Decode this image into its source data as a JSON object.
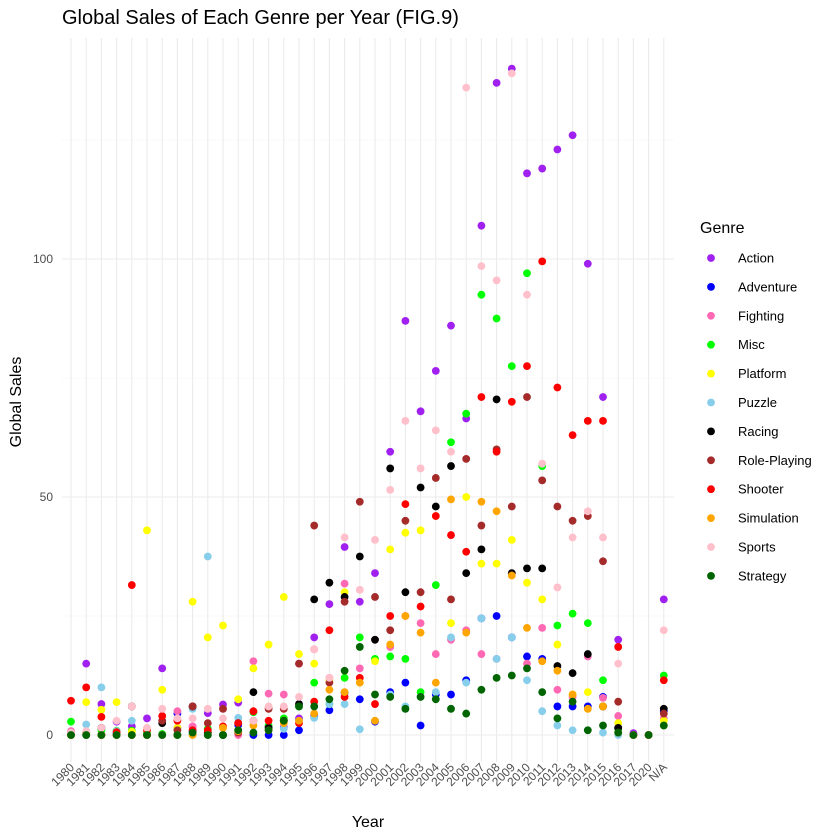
{
  "chart_data": {
    "type": "scatter",
    "title": "Global Sales of Each Genre per Year (FIG.9)",
    "xlabel": "Year",
    "ylabel": "Global Sales",
    "ylim": [
      -5,
      150
    ],
    "yticks": [
      0,
      50,
      100
    ],
    "grid": true,
    "legend_title": "Genre",
    "legend_position": "right",
    "categories": [
      "1980",
      "1981",
      "1982",
      "1983",
      "1984",
      "1985",
      "1986",
      "1987",
      "1988",
      "1989",
      "1990",
      "1991",
      "1992",
      "1993",
      "1994",
      "1995",
      "1996",
      "1997",
      "1998",
      "1999",
      "2000",
      "2001",
      "2002",
      "2003",
      "2004",
      "2005",
      "2006",
      "2007",
      "2008",
      "2009",
      "2010",
      "2011",
      "2012",
      "2013",
      "2014",
      "2015",
      "2016",
      "2017",
      "2020",
      "N/A"
    ],
    "series": [
      {
        "name": "Action",
        "color": "#a020f0",
        "values": [
          0.3,
          15,
          6.5,
          2.8,
          1.8,
          3.5,
          14,
          1.5,
          1.7,
          4.6,
          6.4,
          6.8,
          4.8,
          1.7,
          1.6,
          3.5,
          20.5,
          27.5,
          39.5,
          28,
          34,
          59.5,
          87,
          68,
          76.5,
          86,
          66.5,
          107,
          137,
          140,
          118,
          119,
          123,
          126,
          99,
          71,
          20,
          0.4,
          0,
          28.5
        ]
      },
      {
        "name": "Adventure",
        "color": "#0000ff",
        "values": [
          0,
          0,
          0,
          0.4,
          0,
          0,
          0,
          4.5,
          0.8,
          0,
          0,
          2.1,
          0,
          0,
          0,
          1,
          4,
          5.2,
          8.9,
          7.5,
          2.8,
          9,
          11,
          2,
          8.5,
          8.5,
          11.5,
          24.5,
          25,
          20.5,
          16.5,
          16,
          6,
          6,
          6,
          8,
          1.5,
          0,
          0,
          5
        ]
      },
      {
        "name": "Fighting",
        "color": "#ff69b4",
        "values": [
          0.8,
          0,
          0,
          0,
          0,
          0,
          0,
          5,
          1.8,
          0.5,
          0,
          0,
          15.5,
          8.7,
          8.5,
          15,
          18,
          12,
          31.8,
          14,
          20,
          18.5,
          25,
          23.5,
          17,
          20,
          22,
          17,
          16,
          34,
          15,
          22.5,
          9.5,
          8,
          16.5,
          7.8,
          4,
          0,
          0,
          3.5
        ]
      },
      {
        "name": "Misc",
        "color": "#00ff00",
        "values": [
          2.8,
          0,
          1,
          0.9,
          0.9,
          0.5,
          0.2,
          0,
          0.2,
          1.3,
          0,
          0.9,
          4.8,
          2,
          3.5,
          6,
          11,
          6.5,
          12,
          20.5,
          16,
          16.5,
          16,
          9,
          31.5,
          61.5,
          67.5,
          92.5,
          87.5,
          77.5,
          97,
          56.5,
          23,
          25.5,
          23.5,
          11.5,
          1.2,
          0,
          0,
          12.5
        ]
      },
      {
        "name": "Platform",
        "color": "#ffff00",
        "values": [
          0,
          6.9,
          5.3,
          6.9,
          0.7,
          43,
          9.5,
          1.5,
          28,
          20.5,
          23,
          7.5,
          14,
          19,
          29,
          17,
          15,
          11.5,
          30,
          11,
          15.5,
          39,
          42.5,
          43,
          46,
          23.5,
          50,
          36,
          36,
          41,
          32,
          28.5,
          19,
          8.5,
          9,
          6,
          2.5,
          0,
          0,
          3
        ]
      },
      {
        "name": "Puzzle",
        "color": "#87ceeb",
        "values": [
          0,
          2.2,
          10,
          0.8,
          3,
          0,
          0,
          0,
          5.5,
          37.5,
          0,
          3.6,
          3,
          1.5,
          1.3,
          3,
          3.6,
          6.5,
          6.5,
          1.2,
          3,
          8.5,
          6,
          8,
          9,
          20.5,
          11,
          24.5,
          16,
          20.5,
          11.5,
          5,
          2,
          1,
          1,
          0.5,
          0,
          0,
          0,
          2
        ]
      },
      {
        "name": "Racing",
        "color": "#000000",
        "values": [
          0,
          0.5,
          1.5,
          0,
          6,
          0,
          2.5,
          0,
          6,
          0.5,
          0,
          2.5,
          9,
          1.5,
          3,
          6.5,
          28.5,
          32,
          29,
          37.5,
          20,
          56,
          30,
          52,
          48,
          56.5,
          34,
          39,
          70.5,
          34,
          35,
          35,
          14.5,
          13,
          17,
          6,
          1.5,
          0,
          0,
          5.5
        ]
      },
      {
        "name": "Role-Playing",
        "color": "#a52a2a",
        "values": [
          0,
          0,
          0,
          0,
          0,
          0,
          3,
          1,
          6,
          2.5,
          5.5,
          0.5,
          3,
          5.5,
          5.5,
          15,
          44,
          11,
          28,
          49,
          29,
          22,
          45,
          30,
          54,
          28.5,
          58,
          44,
          60,
          48,
          71,
          53.5,
          48,
          45,
          46,
          36.5,
          7,
          0,
          0,
          4.5
        ]
      },
      {
        "name": "Shooter",
        "color": "#ff0000",
        "values": [
          7.2,
          10,
          3.8,
          0.6,
          31.5,
          1,
          4,
          3,
          1,
          1,
          1.8,
          2.5,
          5,
          3,
          3,
          2.5,
          7,
          22,
          8,
          12,
          6.5,
          25,
          48.5,
          27,
          46,
          42,
          38.5,
          71,
          59.5,
          70,
          77.5,
          99.5,
          73,
          63,
          66,
          66,
          18.5,
          0,
          0,
          11.5
        ]
      },
      {
        "name": "Simulation",
        "color": "#ffa500",
        "values": [
          0,
          0.5,
          0,
          0,
          0,
          0,
          0,
          0,
          0,
          0,
          1.5,
          0.8,
          2,
          1,
          2.5,
          3,
          4.5,
          9.5,
          9,
          11,
          3,
          19,
          25,
          21.5,
          11,
          49.5,
          21.5,
          49,
          47,
          33.5,
          22.5,
          15.5,
          13.5,
          8.5,
          5.5,
          6,
          0.5,
          0,
          0,
          2
        ]
      },
      {
        "name": "Sports",
        "color": "#ffc0cb",
        "values": [
          0.5,
          0.8,
          1.5,
          3,
          6,
          1.5,
          5.5,
          3.5,
          3.5,
          5.5,
          3.5,
          1,
          3,
          6,
          6,
          8,
          18,
          12,
          41.5,
          30.5,
          41,
          51.5,
          66,
          56,
          64,
          59.5,
          136,
          98.5,
          95.5,
          139,
          92.5,
          57,
          31,
          41.5,
          47,
          41.5,
          15,
          0,
          0,
          22
        ]
      },
      {
        "name": "Strategy",
        "color": "#006400",
        "values": [
          0,
          0,
          0,
          0,
          0,
          0,
          0,
          0,
          0.5,
          0,
          0,
          1,
          0.5,
          1,
          3,
          6,
          6,
          7.5,
          13.5,
          18.5,
          8.5,
          8,
          5.5,
          8,
          7.5,
          5.5,
          4.5,
          9.5,
          12,
          12.5,
          14,
          9,
          3.5,
          7,
          1,
          2,
          0.5,
          0,
          0,
          2
        ]
      }
    ]
  }
}
